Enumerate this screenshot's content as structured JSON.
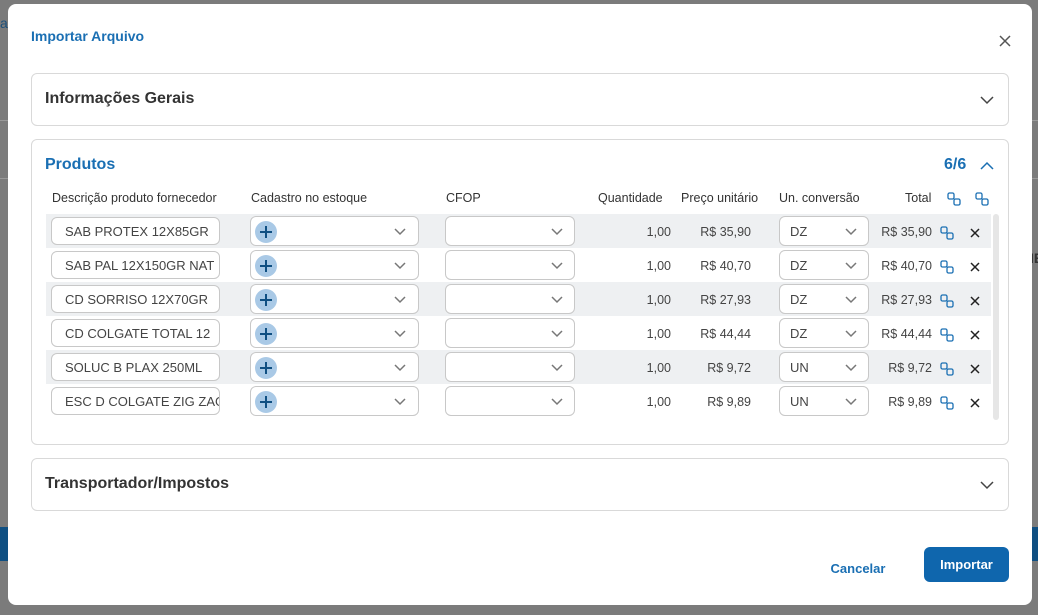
{
  "background": {
    "fragment_left": "ar",
    "fragment_right": "IE"
  },
  "modal": {
    "title": "Importar Arquivo"
  },
  "sections": {
    "general": {
      "title": "Informações Gerais"
    },
    "products": {
      "title": "Produtos",
      "count": "6/6"
    },
    "transport": {
      "title": "Transportador/Impostos"
    }
  },
  "table": {
    "headers": {
      "description": "Descrição produto fornecedor",
      "stock": "Cadastro no estoque",
      "cfop": "CFOP",
      "quantity": "Quantidade",
      "unit_price": "Preço unitário",
      "conversion": "Un. conversão",
      "total": "Total"
    },
    "rows": [
      {
        "description": "SAB PROTEX 12X85GR",
        "quantity": "1,00",
        "unit_price": "R$ 35,90",
        "conversion": "DZ",
        "total": "R$ 35,90"
      },
      {
        "description": "SAB PAL 12X150GR NAT",
        "quantity": "1,00",
        "unit_price": "R$ 40,70",
        "conversion": "DZ",
        "total": "R$ 40,70"
      },
      {
        "description": "CD SORRISO 12X70GR",
        "quantity": "1,00",
        "unit_price": "R$ 27,93",
        "conversion": "DZ",
        "total": "R$ 27,93"
      },
      {
        "description": "CD COLGATE TOTAL 12",
        "quantity": "1,00",
        "unit_price": "R$ 44,44",
        "conversion": "DZ",
        "total": "R$ 44,44"
      },
      {
        "description": "SOLUC B PLAX 250ML",
        "quantity": "1,00",
        "unit_price": "R$ 9,72",
        "conversion": "UN",
        "total": "R$ 9,72"
      },
      {
        "description": "ESC D COLGATE ZIG ZAG",
        "quantity": "1,00",
        "unit_price": "R$ 9,89",
        "conversion": "UN",
        "total": "R$ 9,89"
      }
    ]
  },
  "footer": {
    "cancel": "Cancelar",
    "import": "Importar"
  },
  "colors": {
    "accent": "#1a6fb3",
    "primary_button": "#0f66ad",
    "row_shade": "#eef0f2",
    "plus_bg": "#a9c9e6"
  },
  "icons": [
    "close-icon",
    "chevron-down-icon",
    "chevron-up-icon",
    "plus-icon",
    "link-icon",
    "delete-icon"
  ]
}
